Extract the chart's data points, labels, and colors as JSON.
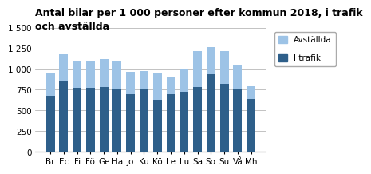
{
  "categories": [
    "Br",
    "Ec",
    "Fi",
    "Fö",
    "Ge",
    "Ha",
    "Jo",
    "Ku",
    "Kö",
    "Le",
    "Lu",
    "Sa",
    "So",
    "Su",
    "Vå",
    "Mh"
  ],
  "i_trafik": [
    680,
    850,
    775,
    775,
    785,
    750,
    700,
    760,
    630,
    695,
    730,
    780,
    935,
    820,
    750,
    640
  ],
  "avstallda": [
    280,
    330,
    320,
    330,
    340,
    355,
    270,
    215,
    320,
    205,
    275,
    440,
    330,
    400,
    300,
    150
  ],
  "color_i_trafik": "#2E5F8A",
  "color_avst": "#9DC3E6",
  "title_line1": "Antal bilar per 1 000 personer efter kommun 2018, i trafik",
  "title_line2": "och avställda",
  "ylabel": "",
  "ylim": [
    0,
    1500
  ],
  "yticks": [
    0,
    250,
    500,
    750,
    1000,
    1250,
    1500
  ],
  "ytick_labels": [
    "0",
    "250",
    "500",
    "750",
    "1 000",
    "1 250",
    "1 500"
  ],
  "legend_avst": "Avställda",
  "legend_itrafik": "I trafik",
  "title_fontsize": 9,
  "tick_fontsize": 7.5
}
